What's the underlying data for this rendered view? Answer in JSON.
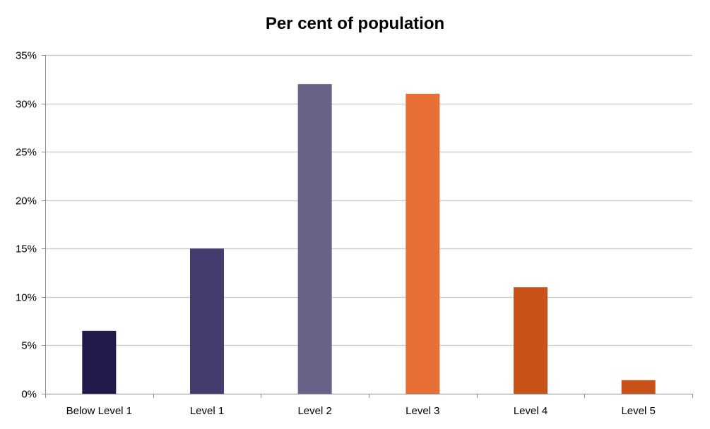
{
  "chart_data": {
    "type": "bar",
    "title": "Per cent of population",
    "xlabel": "",
    "ylabel": "",
    "categories": [
      "Below Level 1",
      "Level 1",
      "Level 2",
      "Level 3",
      "Level 4",
      "Level 5"
    ],
    "values": [
      6.5,
      15,
      32,
      31,
      11,
      1.4
    ],
    "bar_colors": [
      "#211a4a",
      "#433c6e",
      "#686389",
      "#e76e34",
      "#c95219",
      "#c95219"
    ],
    "ylim": [
      0,
      35
    ],
    "yticks": [
      0,
      5,
      10,
      15,
      20,
      25,
      30,
      35
    ],
    "ytick_labels": [
      "0%",
      "5%",
      "10%",
      "15%",
      "20%",
      "25%",
      "30%",
      "35%"
    ],
    "grid": true,
    "legend": "none"
  }
}
